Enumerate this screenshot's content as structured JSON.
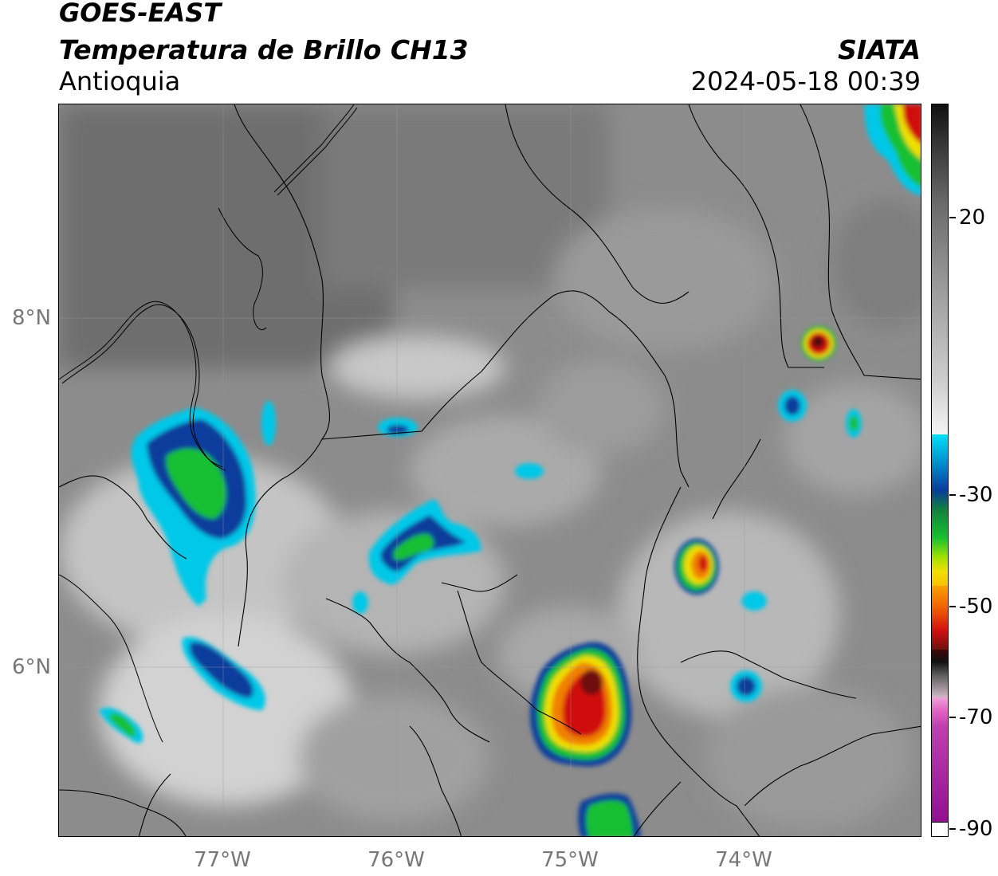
{
  "header": {
    "title_line1": "GOES-EAST",
    "title_line2": "Temperatura de Brillo CH13",
    "region": "Antioquia",
    "organization": "SIATA",
    "timestamp": "2024-05-18 00:39"
  },
  "map": {
    "lat_labels": [
      "8°N",
      "6°N"
    ],
    "lon_labels": [
      "77°W",
      "76°W",
      "75°W",
      "74°W"
    ]
  },
  "colorbar": {
    "labels": [
      "20",
      "-30",
      "-50",
      "-70",
      "-90"
    ],
    "colors": {
      "cyan": "#00c8e8",
      "blue": "#0a3c9c",
      "green": "#18c030",
      "yellow": "#f0e000",
      "orange": "#f08000",
      "red": "#d01010",
      "darkred": "#701010",
      "black": "#101010",
      "pink": "#e060c0",
      "purple": "#901090"
    }
  }
}
